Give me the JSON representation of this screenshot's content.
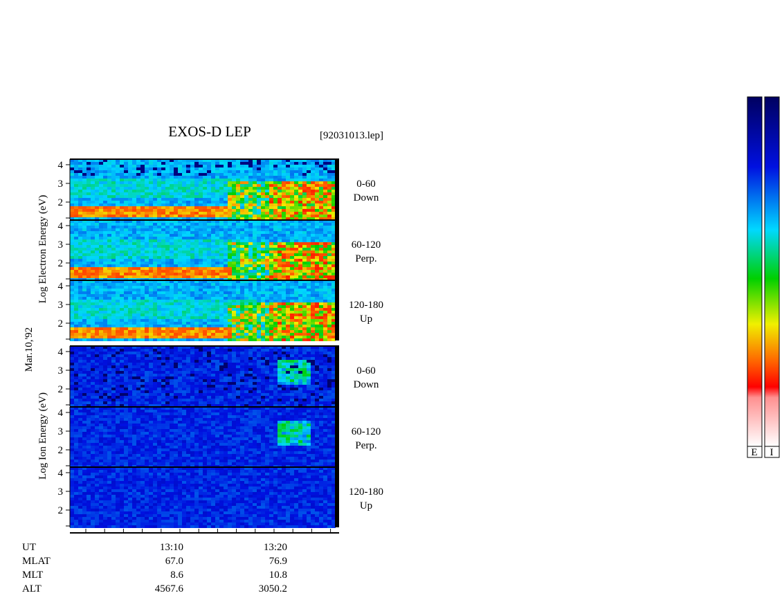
{
  "header": {
    "title": "EXOS-D LEP",
    "file": "[92031013.lep]",
    "date": "Mar.10,'92"
  },
  "energy_ticks": [
    "4",
    "3",
    "2"
  ],
  "electron": {
    "axis_label": "Log  Electron  Energy (eV)",
    "channels": [
      {
        "range": "0-60",
        "direction": "Down"
      },
      {
        "range": "60-120",
        "direction": "Perp."
      },
      {
        "range": "120-180",
        "direction": "Up"
      }
    ]
  },
  "ion": {
    "axis_label": "Log  Ion  Energy (eV)",
    "channels": [
      {
        "range": "0-60",
        "direction": "Down"
      },
      {
        "range": "60-120",
        "direction": "Perp."
      },
      {
        "range": "120-180",
        "direction": "Up"
      }
    ]
  },
  "time_axis": {
    "rows": [
      {
        "name": "UT",
        "values": [
          "13:10",
          "13:20"
        ]
      },
      {
        "name": "MLAT",
        "values": [
          "67.0",
          "76.9"
        ]
      },
      {
        "name": "MLT",
        "values": [
          "8.6",
          "10.8"
        ]
      },
      {
        "name": "ALT",
        "values": [
          "4567.6",
          "3050.2"
        ]
      }
    ]
  },
  "colorbars": [
    "E",
    "I"
  ]
}
